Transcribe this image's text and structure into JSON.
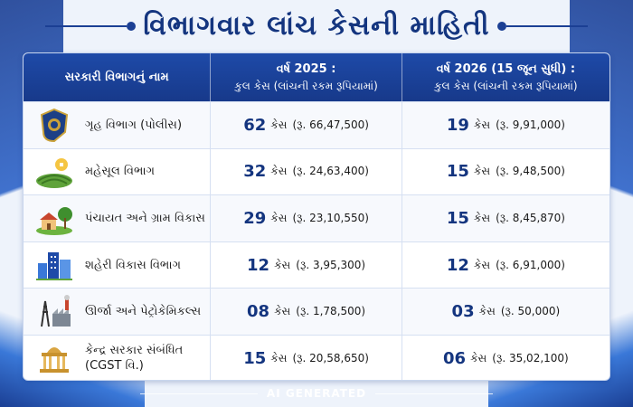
{
  "title": "વિભાગવાર લાંચ કેસની માહિતી",
  "table": {
    "headers": {
      "department": "સરકારી વિભાગનું નામ",
      "col2_title": "વર્ષ 2025 :",
      "col2_sub": "કુલ કેસ (લાંચની રકમ રૂપિયામાં)",
      "col3_title": "વર્ષ 2026 (15 જૂન સુધી) :",
      "col3_sub": "કુલ કેસ (લાંચની રકમ રૂપિયામાં)"
    },
    "case_unit": "કેસ",
    "rows": [
      {
        "icon": "police-badge-icon",
        "name": "ગૃહ વિભાગ (પોલીસ)",
        "name2": "",
        "y2025_cases": "62",
        "y2025_amount": "(રૂ. 66,47,500)",
        "y2026_cases": "19",
        "y2026_amount": "(રૂ. 9,91,000)"
      },
      {
        "icon": "farm-field-icon",
        "name": "મહેસૂલ વિભાગ",
        "name2": "",
        "y2025_cases": "32",
        "y2025_amount": "(રૂ. 24,63,400)",
        "y2026_cases": "15",
        "y2026_amount": "(રૂ. 9,48,500)"
      },
      {
        "icon": "village-house-icon",
        "name": "પંચાયત અને ગ્રામ વિકાસ",
        "name2": "",
        "y2025_cases": "29",
        "y2025_amount": "(રૂ. 23,10,550)",
        "y2026_cases": "15",
        "y2026_amount": "(રૂ. 8,45,870)"
      },
      {
        "icon": "city-buildings-icon",
        "name": "શહેરી વિકાસ વિભાગ",
        "name2": "",
        "y2025_cases": "12",
        "y2025_amount": "(રૂ. 3,95,300)",
        "y2026_cases": "12",
        "y2026_amount": "(રૂ. 6,91,000)"
      },
      {
        "icon": "power-factory-icon",
        "name": "ઊર્જા અને પેટ્રોકેમિકલ્સ",
        "name2": "",
        "y2025_cases": "08",
        "y2025_amount": "(રૂ. 1,78,500)",
        "y2026_cases": "03",
        "y2026_amount": "(રૂ. 50,000)"
      },
      {
        "icon": "government-building-icon",
        "name": "કેન્દ્ર સરકાર સંબંધિત",
        "name2": "(CGST વિ.)",
        "y2025_cases": "15",
        "y2025_amount": "(રૂ. 20,58,650)",
        "y2026_cases": "06",
        "y2026_amount": "(રૂ. 35,02,100)"
      }
    ]
  },
  "footer": "AI GENERATED",
  "colors": {
    "primary": "#14357f",
    "header_bg": "#1e4aa8",
    "page_bg": "#eef3fb"
  }
}
